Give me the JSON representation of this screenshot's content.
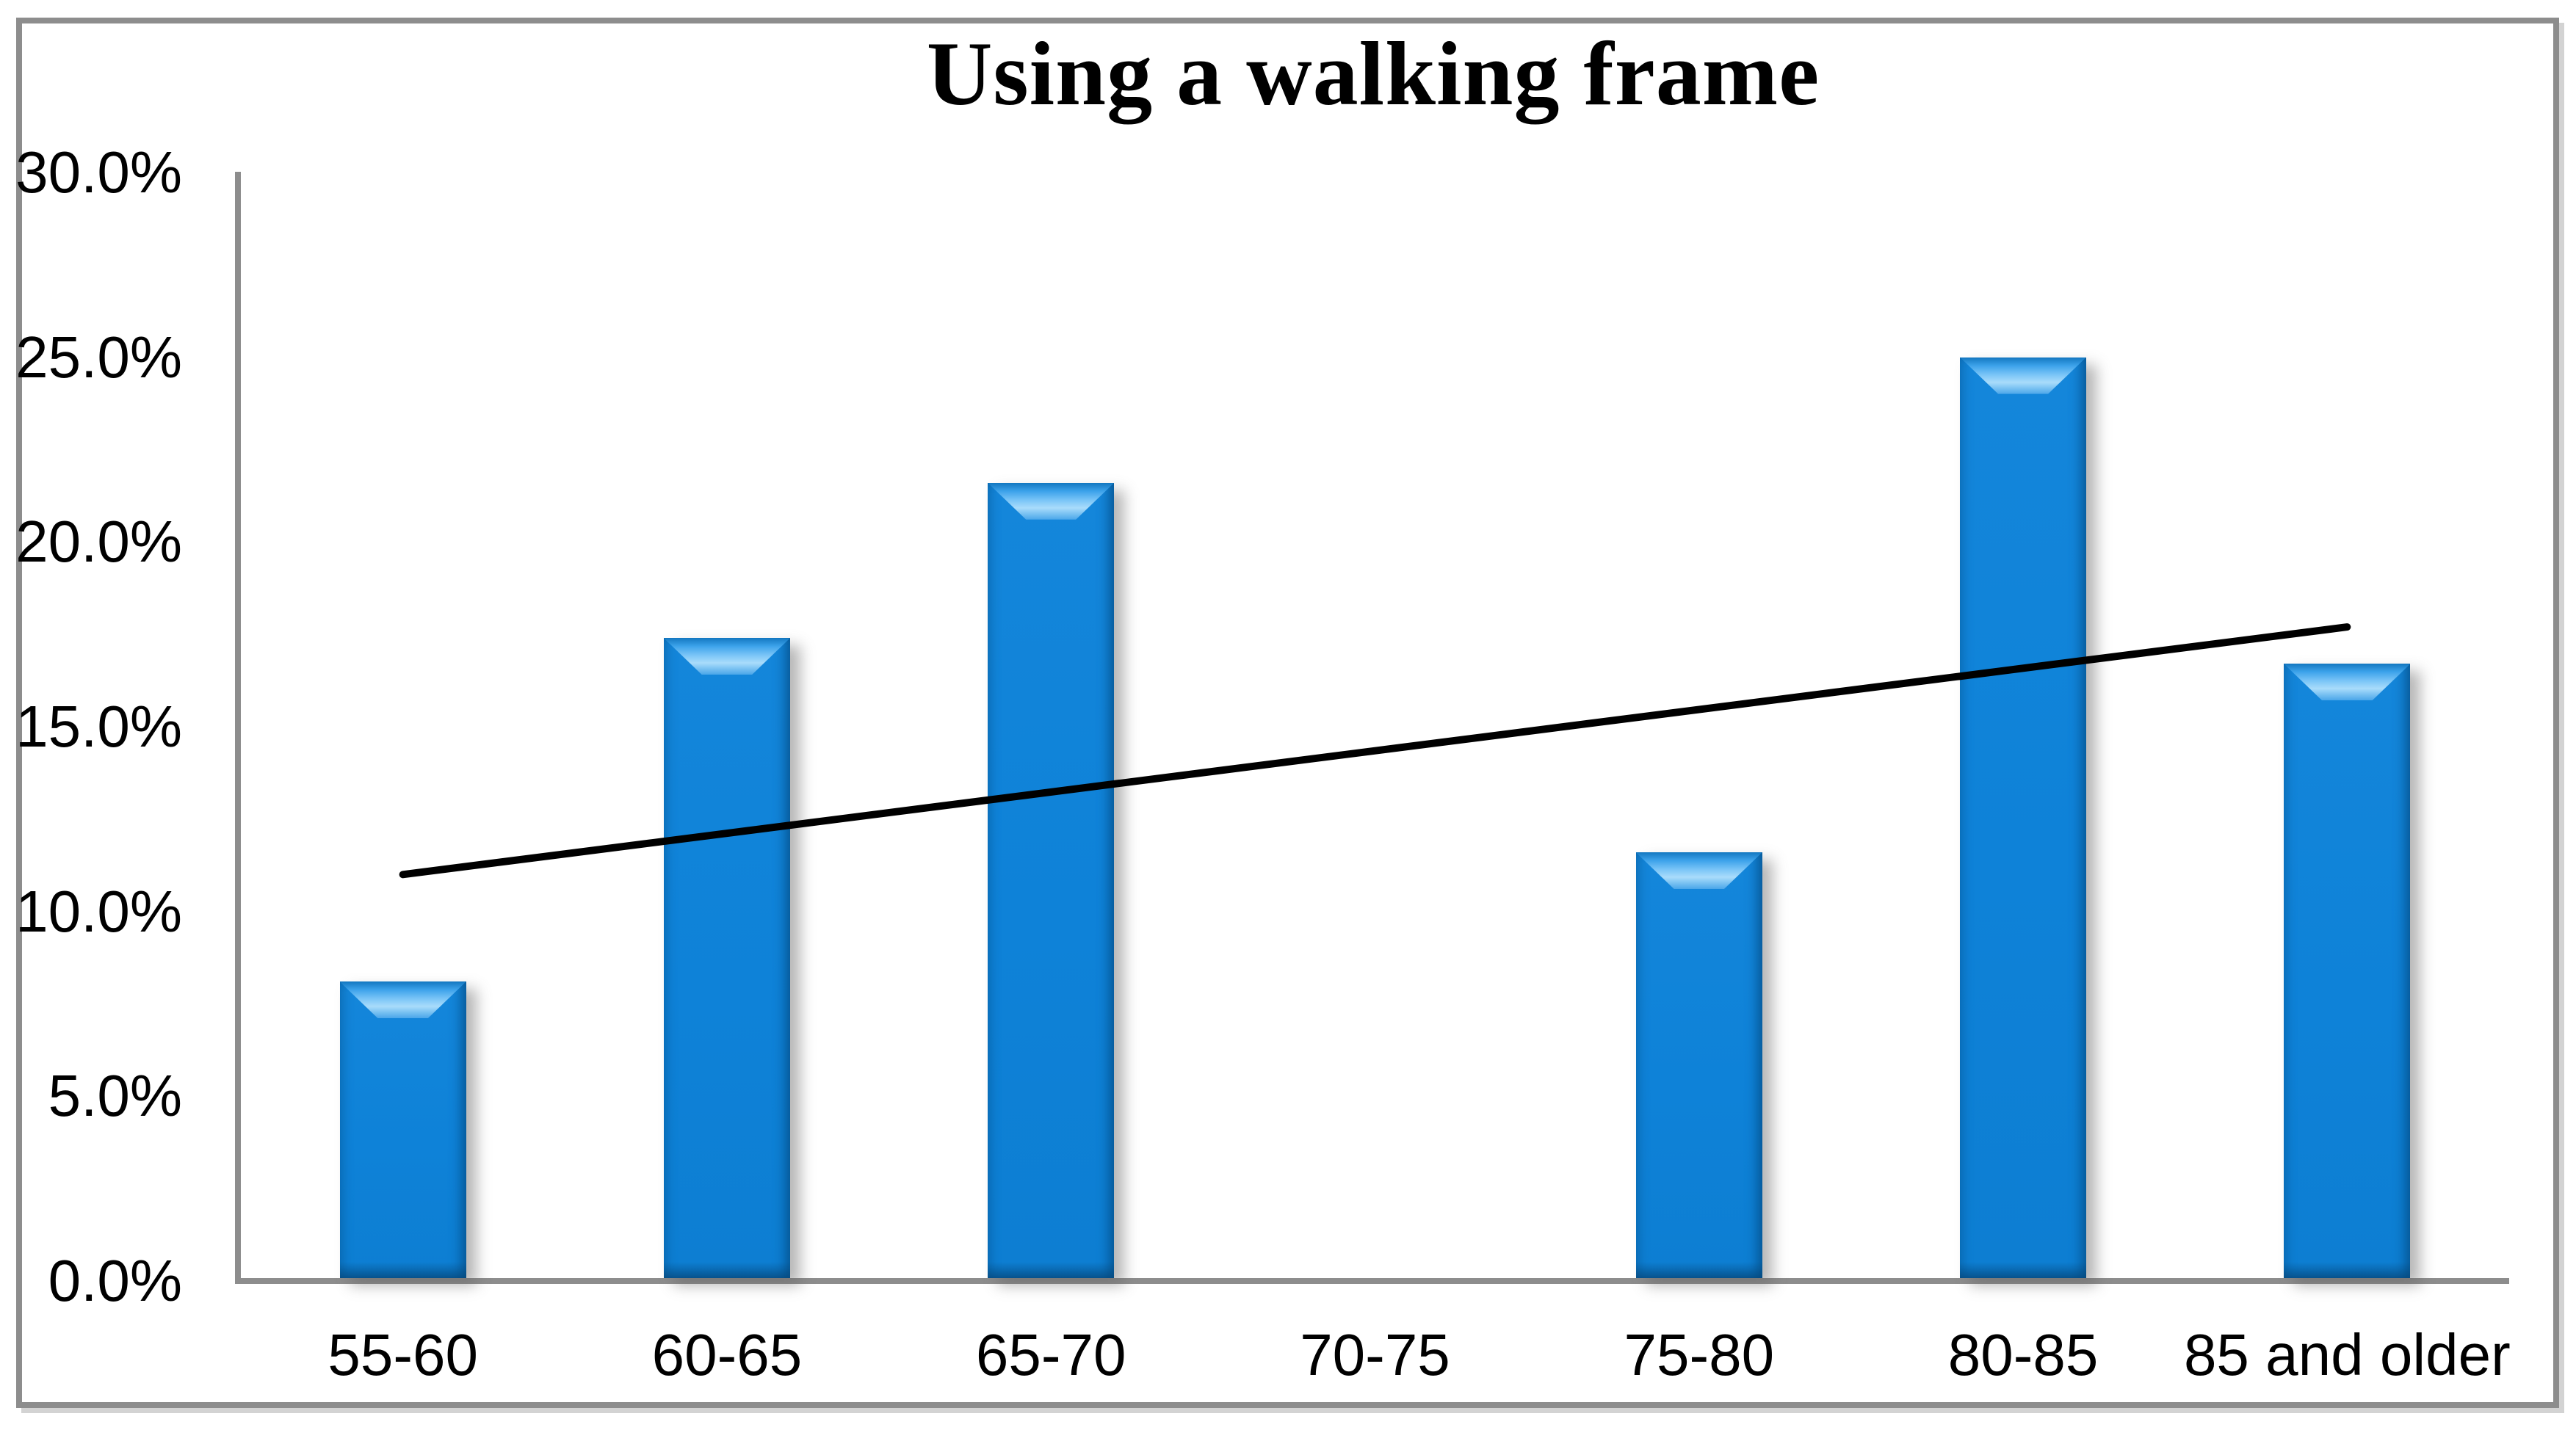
{
  "chart_data": {
    "type": "bar",
    "title": "Using a walking frame",
    "categories": [
      "55-60",
      "60-65",
      "65-70",
      "70-75",
      "75-80",
      "80-85",
      "85 and older"
    ],
    "values": [
      8.1,
      17.4,
      21.6,
      0,
      11.6,
      25.0,
      16.7
    ],
    "unit": "%",
    "xlabel": "",
    "ylabel": "",
    "y_axis": {
      "min": 0,
      "max": 30,
      "step": 5,
      "tick_labels": [
        "0.0%",
        "5.0%",
        "10.0%",
        "15.0%",
        "20.0%",
        "25.0%",
        "30.0%"
      ]
    },
    "grid": false,
    "legend": "none",
    "trendline": {
      "type": "linear",
      "start_percent": 11.0,
      "end_percent": 17.7,
      "color": "#000000"
    },
    "colors": {
      "bar_fill": "#0e82d8",
      "bar_highlight": "#a9dcfb",
      "bar_shadow_edge": "#07467a",
      "axis_line": "#8d8d8d",
      "frame_border": "#8d8d8d",
      "text": "#000000",
      "background": "#ffffff"
    }
  }
}
